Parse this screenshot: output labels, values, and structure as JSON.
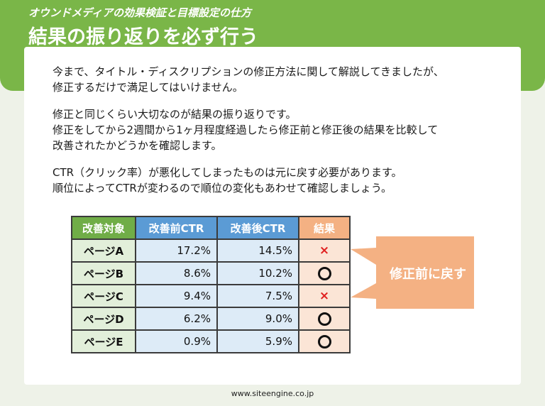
{
  "header": {
    "subtitle": "オウンドメディアの効果検証と目標設定の仕方",
    "title": "結果の振り返りを必ず行う"
  },
  "body": {
    "paragraphs": [
      [
        "今まで、タイトル・ディスクリプションの修正方法に関して解説してきましたが、",
        "修正するだけで満足してはいけません。"
      ],
      [
        "修正と同じくらい大切なのが結果の振り返りです。",
        "修正をしてから2週間から1ヶ月程度経過したら修正前と修正後の結果を比較して",
        "改善されたかどうかを確認します。"
      ],
      [
        "CTR（クリック率）が悪化してしまったものは元に戻す必要があります。",
        "順位によってCTRが変わるので順位の変化もあわせて確認しましょう。"
      ]
    ]
  },
  "table": {
    "headers": {
      "target": "改善対象",
      "before": "改善前CTR",
      "after": "改善後CTR",
      "result": "結果"
    },
    "rows": [
      {
        "page": "ページA",
        "before": "17.2%",
        "after": "14.5%",
        "result": "x"
      },
      {
        "page": "ページB",
        "before": "8.6%",
        "after": "10.2%",
        "result": "o"
      },
      {
        "page": "ページC",
        "before": "9.4%",
        "after": "7.5%",
        "result": "x"
      },
      {
        "page": "ページD",
        "before": "6.2%",
        "after": "9.0%",
        "result": "o"
      },
      {
        "page": "ページE",
        "before": "0.9%",
        "after": "5.9%",
        "result": "o"
      }
    ],
    "x_glyph": "×"
  },
  "callout": {
    "text": "修正前に戻す",
    "color": "#f4b183"
  },
  "footer": {
    "url": "www.siteengine.co.jp"
  },
  "colors": {
    "brand_green": "#7ab648",
    "header_green": "#70ad47",
    "header_blue": "#5b9bd5",
    "header_orange": "#f4b183",
    "bad_mark": "#e02020"
  }
}
